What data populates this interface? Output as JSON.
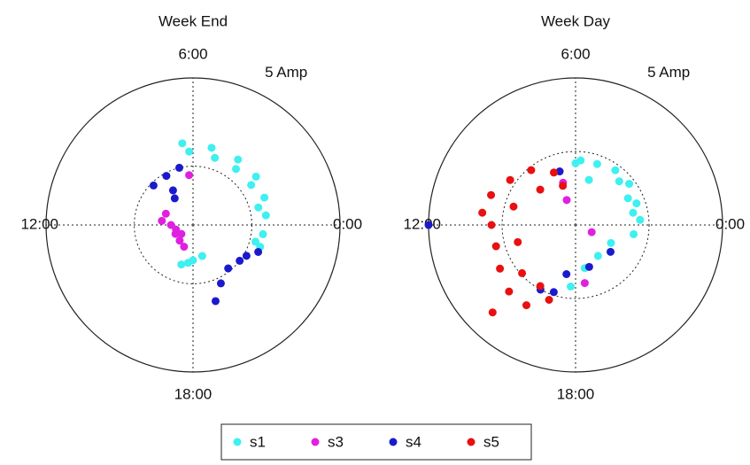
{
  "chart_data": [
    {
      "type": "polar",
      "title": "Week End",
      "xlim": [
        0,
        24
      ],
      "xticks": [
        {
          "value": 0,
          "label": "0:00"
        },
        {
          "value": 6,
          "label": "6:00"
        },
        {
          "value": 12,
          "label": "12:00"
        },
        {
          "value": 18,
          "label": "18:00"
        }
      ],
      "rlim": [
        0,
        5
      ],
      "rticks": [
        {
          "value": 5,
          "label": "5 Amp"
        }
      ],
      "rgrid": [
        2
      ],
      "series": [
        {
          "name": "s1",
          "color": "#3ef0f0",
          "x": [
            6.5,
            5.1,
            3.7,
            2.5,
            1.4,
            0.5,
            23.5,
            22.8,
            6.2,
            4.8,
            3.5,
            2.3,
            1.0,
            23.0,
            16.9,
            18,
            19.1,
            17.5
          ],
          "values": [
            2.8,
            2.7,
            2.7,
            2.7,
            2.6,
            2.5,
            2.4,
            2.4,
            2.5,
            2.4,
            2.4,
            2.4,
            2.3,
            2.2,
            1.4,
            1.2,
            1.1,
            1.3
          ]
        },
        {
          "name": "s3",
          "color": "#e020e0",
          "x": [
            10.5,
            12,
            13.8,
            15.3,
            16.5,
            11.5,
            6.3,
            13,
            14.5
          ],
          "values": [
            1.0,
            0.75,
            0.67,
            0.7,
            0.8,
            1.07,
            1.7,
            0.6,
            0.5
          ]
        },
        {
          "name": "s4",
          "color": "#1a1acc",
          "x": [
            8,
            9,
            7.9,
            6.9,
            8.3,
            21.5,
            22,
            20.6,
            19.7,
            19.1,
            22.5
          ],
          "values": [
            1.36,
            1.9,
            1.9,
            2.0,
            1.1,
            2.0,
            2.1,
            1.9,
            2.2,
            2.7,
            2.4
          ]
        }
      ]
    },
    {
      "type": "polar",
      "title": "Week Day",
      "xlim": [
        0,
        24
      ],
      "xticks": [
        {
          "value": 0,
          "label": "0:00"
        },
        {
          "value": 6,
          "label": "6:00"
        },
        {
          "value": 12,
          "label": "12:00"
        },
        {
          "value": 18,
          "label": "18:00"
        }
      ],
      "rlim": [
        0,
        5
      ],
      "rticks": [
        {
          "value": 5,
          "label": "5 Amp"
        }
      ],
      "rgrid": [
        2.5
      ],
      "series": [
        {
          "name": "s1",
          "color": "#3ef0f0",
          "x": [
            5.7,
            4.7,
            3.6,
            2.5,
            1.3,
            0.3,
            23.4,
            22.2,
            20.4,
            18.8,
            17.7,
            6,
            4.9,
            3.0,
            1.8,
            0.8
          ],
          "values": [
            2.2,
            2.2,
            2.3,
            2.3,
            2.2,
            2.2,
            2.0,
            1.35,
            1.3,
            1.5,
            2.1,
            2.1,
            1.6,
            2.1,
            2.0,
            2.0
          ]
        },
        {
          "name": "s3",
          "color": "#e020e0",
          "x": [
            7.3,
            22.4,
            18.6,
            7.1
          ],
          "values": [
            0.9,
            0.6,
            2.0,
            1.5
          ]
        },
        {
          "name": "s4",
          "color": "#1a1acc",
          "x": [
            7.1,
            21.5,
            19.2,
            16.8,
            16.1,
            17.3,
            12
          ],
          "values": [
            1.9,
            1.5,
            1.5,
            2.4,
            2.5,
            1.7,
            5.0
          ]
        },
        {
          "name": "s5",
          "color": "#e81010",
          "x": [
            7.5,
            8.6,
            9.7,
            10.7,
            11.5,
            12,
            13,
            14,
            15,
            15.9,
            16.7,
            10.9,
            13.1,
            14.8,
            16,
            9,
            7.2,
            15.1
          ],
          "values": [
            1.93,
            2.4,
            2.7,
            3.05,
            3.2,
            2.86,
            2.8,
            2.97,
            3.2,
            3.2,
            2.7,
            2.2,
            2.05,
            2.45,
            2.4,
            1.7,
            1.4,
            4.1
          ]
        }
      ]
    }
  ]
}
